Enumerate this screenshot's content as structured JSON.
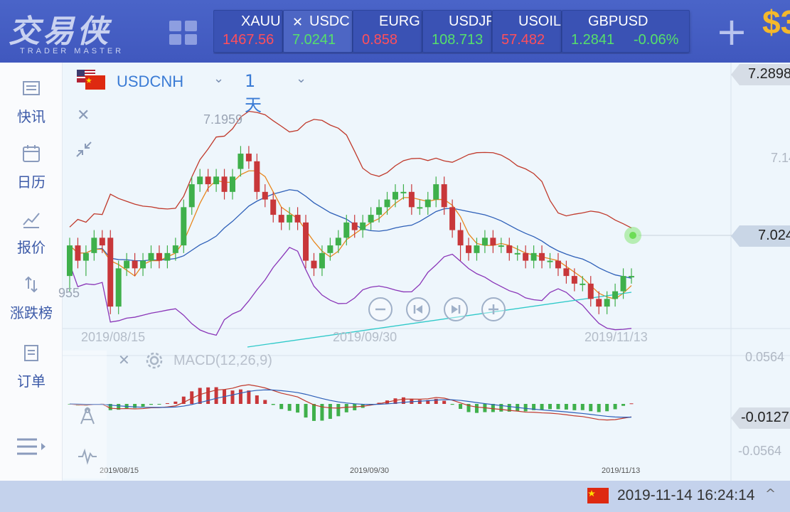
{
  "app": {
    "logo_text": "交易侠",
    "logo_subtitle": "TRADER MASTER",
    "header_right_text": "$3"
  },
  "tickers": [
    {
      "symbol": "XAUU",
      "price": "1467.56",
      "direction": "down"
    },
    {
      "symbol": "USDC",
      "price": "7.0241",
      "direction": "up",
      "active": true,
      "close_label": "✕"
    },
    {
      "symbol": "EURG",
      "price": "0.858",
      "direction": "down"
    },
    {
      "symbol": "USDJF",
      "price": "108.713",
      "direction": "up"
    },
    {
      "symbol": "USOIL",
      "price": "57.482",
      "direction": "down"
    },
    {
      "symbol": "GBPUSD",
      "price": "1.2841",
      "change": "-0.06%",
      "direction": "up"
    }
  ],
  "sidebar": {
    "items": [
      {
        "label": "快讯",
        "icon": "news-icon"
      },
      {
        "label": "日历",
        "icon": "calendar-icon"
      },
      {
        "label": "报价",
        "icon": "quote-chart-icon"
      },
      {
        "label": "涨跌榜",
        "icon": "updown-arrows-icon"
      },
      {
        "label": "订单",
        "icon": "order-icon"
      }
    ],
    "menu_icon": "menu-icon"
  },
  "chart_header": {
    "pair": "USDCNH",
    "period": "1天",
    "caret": "⌄"
  },
  "price_labels": {
    "top_tag": "7.2898",
    "current_tag": "7.024",
    "right_scale_mid": "7.14",
    "high_annotation": "7.1959",
    "low_annotation": "955",
    "macd_upper": "0.0564",
    "macd_current": "-0.0127",
    "macd_lower": "-0.0564"
  },
  "dates": {
    "main": [
      "2019/08/15",
      "2019/09/30",
      "2019/11/13"
    ],
    "small": [
      "2019/08/15",
      "2019/09/30",
      "2019/11/13"
    ]
  },
  "macd": {
    "title": "MACD(12,26,9)",
    "close": "✕"
  },
  "footer": {
    "datetime": "2019-11-14 16:24:14",
    "caret": "^"
  },
  "colors": {
    "up": "#3fb04b",
    "down": "#c8373a",
    "boll_upper": "#c0392b",
    "boll_mid": "#2d5fb8",
    "boll_lower": "#8a35b8",
    "ma_short": "#e8871e",
    "ma_long": "#2ec9c9"
  },
  "chart_data": {
    "type": "candlestick",
    "symbol": "USDCNH",
    "period": "1天",
    "x_labels": [
      "2019/08/15",
      "2019/09/30",
      "2019/11/13"
    ],
    "ylim": [
      6.955,
      7.2898
    ],
    "high_marker": 7.1959,
    "last_price": 7.0241,
    "candles": [
      [
        7.02,
        7.06,
        7.0,
        7.07
      ],
      [
        7.06,
        7.04,
        7.03,
        7.07
      ],
      [
        7.04,
        7.05,
        7.02,
        7.06
      ],
      [
        7.05,
        7.07,
        7.04,
        7.08
      ],
      [
        7.07,
        7.06,
        7.05,
        7.08
      ],
      [
        7.07,
        6.98,
        6.97,
        7.08
      ],
      [
        6.98,
        7.03,
        6.97,
        7.04
      ],
      [
        7.03,
        7.04,
        7.02,
        7.05
      ],
      [
        7.04,
        7.03,
        7.02,
        7.05
      ],
      [
        7.03,
        7.04,
        7.02,
        7.05
      ],
      [
        7.04,
        7.05,
        7.03,
        7.06
      ],
      [
        7.05,
        7.04,
        7.03,
        7.06
      ],
      [
        7.04,
        7.05,
        7.03,
        7.06
      ],
      [
        7.05,
        7.06,
        7.04,
        7.07
      ],
      [
        7.06,
        7.11,
        7.05,
        7.12
      ],
      [
        7.11,
        7.14,
        7.1,
        7.15
      ],
      [
        7.14,
        7.15,
        7.13,
        7.16
      ],
      [
        7.15,
        7.14,
        7.13,
        7.16
      ],
      [
        7.14,
        7.15,
        7.13,
        7.16
      ],
      [
        7.15,
        7.13,
        7.12,
        7.16
      ],
      [
        7.13,
        7.15,
        7.12,
        7.16
      ],
      [
        7.16,
        7.18,
        7.15,
        7.19
      ],
      [
        7.18,
        7.17,
        7.16,
        7.19
      ],
      [
        7.17,
        7.13,
        7.12,
        7.18
      ],
      [
        7.13,
        7.12,
        7.11,
        7.14
      ],
      [
        7.12,
        7.1,
        7.09,
        7.13
      ],
      [
        7.1,
        7.09,
        7.08,
        7.11
      ],
      [
        7.09,
        7.1,
        7.08,
        7.11
      ],
      [
        7.1,
        7.09,
        7.08,
        7.11
      ],
      [
        7.09,
        7.04,
        7.03,
        7.1
      ],
      [
        7.04,
        7.03,
        7.02,
        7.05
      ],
      [
        7.03,
        7.05,
        7.02,
        7.06
      ],
      [
        7.05,
        7.06,
        7.04,
        7.07
      ],
      [
        7.06,
        7.07,
        7.05,
        7.08
      ],
      [
        7.07,
        7.09,
        7.06,
        7.1
      ],
      [
        7.09,
        7.08,
        7.07,
        7.1
      ],
      [
        7.08,
        7.09,
        7.07,
        7.1
      ],
      [
        7.09,
        7.1,
        7.08,
        7.11
      ],
      [
        7.1,
        7.11,
        7.09,
        7.12
      ],
      [
        7.11,
        7.12,
        7.1,
        7.13
      ],
      [
        7.12,
        7.13,
        7.11,
        7.14
      ],
      [
        7.13,
        7.13,
        7.12,
        7.14
      ],
      [
        7.13,
        7.11,
        7.1,
        7.14
      ],
      [
        7.11,
        7.11,
        7.1,
        7.12
      ],
      [
        7.11,
        7.12,
        7.1,
        7.13
      ],
      [
        7.12,
        7.14,
        7.11,
        7.15
      ],
      [
        7.14,
        7.11,
        7.1,
        7.15
      ],
      [
        7.11,
        7.08,
        7.07,
        7.12
      ],
      [
        7.08,
        7.06,
        7.04,
        7.09
      ],
      [
        7.06,
        7.05,
        7.04,
        7.07
      ],
      [
        7.05,
        7.06,
        7.04,
        7.07
      ],
      [
        7.06,
        7.07,
        7.05,
        7.08
      ],
      [
        7.07,
        7.06,
        7.05,
        7.08
      ],
      [
        7.06,
        7.06,
        7.05,
        7.07
      ],
      [
        7.06,
        7.05,
        7.04,
        7.07
      ],
      [
        7.05,
        7.05,
        7.04,
        7.06
      ],
      [
        7.05,
        7.04,
        7.03,
        7.06
      ],
      [
        7.04,
        7.05,
        7.03,
        7.06
      ],
      [
        7.05,
        7.04,
        7.03,
        7.06
      ],
      [
        7.04,
        7.04,
        7.03,
        7.05
      ],
      [
        7.04,
        7.03,
        7.02,
        7.05
      ],
      [
        7.03,
        7.02,
        7.01,
        7.04
      ],
      [
        7.02,
        7.01,
        7.0,
        7.03
      ],
      [
        7.01,
        7.01,
        7.0,
        7.02
      ],
      [
        7.01,
        6.99,
        6.98,
        7.02
      ],
      [
        6.99,
        6.98,
        6.97,
        7.0
      ],
      [
        6.98,
        6.99,
        6.97,
        7.0
      ],
      [
        6.99,
        7.0,
        6.98,
        7.01
      ],
      [
        7.0,
        7.02,
        6.99,
        7.03
      ],
      [
        7.02,
        7.02,
        7.01,
        7.03
      ]
    ]
  }
}
